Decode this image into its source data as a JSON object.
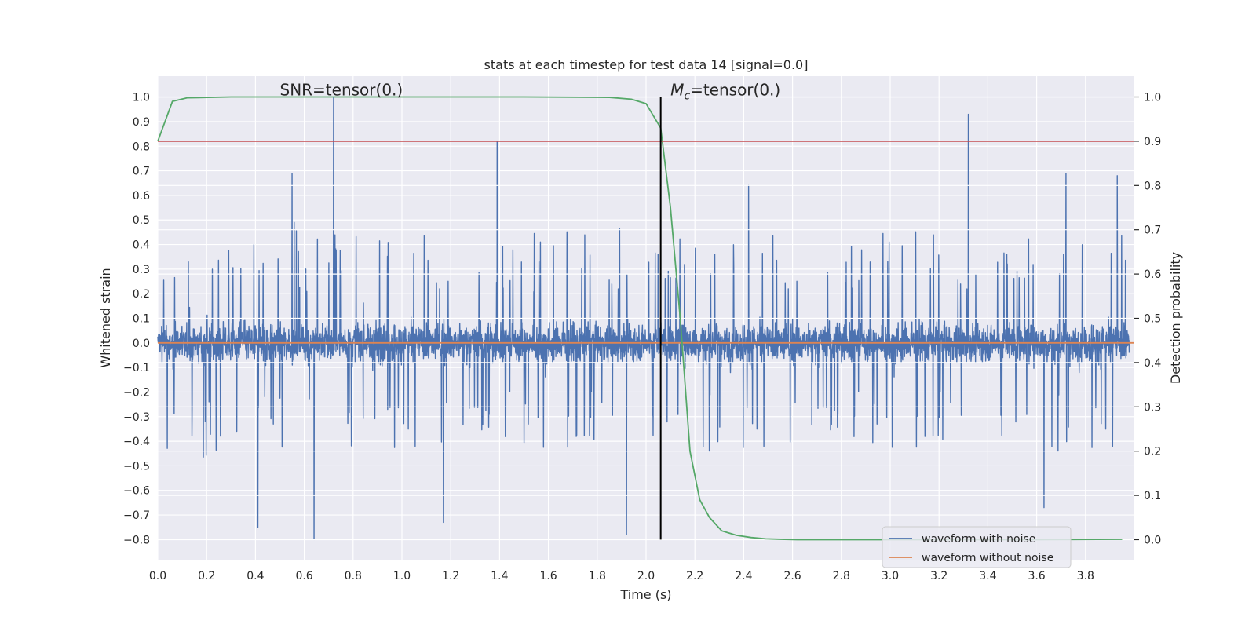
{
  "chart_data": {
    "type": "line",
    "title": "stats at each timestep for test data 14 [signal=0.0]",
    "xlabel": "Time (s)",
    "ylabel": "Whitened strain",
    "y2label": "Detection probability",
    "xlim": [
      0.0,
      4.0
    ],
    "ylim": [
      -0.885,
      1.085
    ],
    "y2lim": [
      -0.047,
      1.047
    ],
    "x_ticks": [
      0.0,
      0.2,
      0.4,
      0.6,
      0.8,
      1.0,
      1.2,
      1.4,
      1.6,
      1.8,
      2.0,
      2.2,
      2.4,
      2.6,
      2.8,
      3.0,
      3.2,
      3.4,
      3.6,
      3.8
    ],
    "x_tick_labels": [
      "0.0",
      "0.2",
      "0.4",
      "0.6",
      "0.8",
      "1.0",
      "1.2",
      "1.4",
      "1.6",
      "1.8",
      "2.0",
      "2.2",
      "2.4",
      "2.6",
      "2.8",
      "3.0",
      "3.2",
      "3.4",
      "3.6",
      "3.8"
    ],
    "y_ticks": [
      1.0,
      0.9,
      0.8,
      0.7,
      0.6,
      0.5,
      0.4,
      0.3,
      0.2,
      0.1,
      0.0,
      -0.1,
      -0.2,
      -0.3,
      -0.4,
      -0.5,
      -0.6,
      -0.7,
      -0.8
    ],
    "y_tick_labels": [
      "1.0",
      "0.9",
      "0.8",
      "0.7",
      "0.6",
      "0.5",
      "0.4",
      "0.3",
      "0.2",
      "0.1",
      "0.0",
      "−0.1",
      "−0.2",
      "−0.3",
      "−0.4",
      "−0.5",
      "−0.6",
      "−0.7",
      "−0.8"
    ],
    "y2_ticks": [
      1.0,
      0.9,
      0.8,
      0.7,
      0.6,
      0.5,
      0.4,
      0.3,
      0.2,
      0.1,
      0.0
    ],
    "y2_tick_labels": [
      "1.0",
      "0.9",
      "0.8",
      "0.7",
      "0.6",
      "0.5",
      "0.4",
      "0.3",
      "0.2",
      "0.1",
      "0.0"
    ],
    "grid": true,
    "background": "#eaeaf2",
    "series": [
      {
        "name": "waveform with noise",
        "axis": "left",
        "color": "#4c72b0",
        "style": "dense noisy trace spanning full time range",
        "peaks": [
          {
            "x": 0.72,
            "y": 1.0
          },
          {
            "x": 1.39,
            "y": 0.82
          },
          {
            "x": 3.32,
            "y": 0.93
          },
          {
            "x": 0.55,
            "y": 0.69
          },
          {
            "x": 3.72,
            "y": 0.69
          },
          {
            "x": 3.93,
            "y": 0.68
          },
          {
            "x": 2.42,
            "y": 0.64
          },
          {
            "x": 0.64,
            "y": -0.8
          },
          {
            "x": 0.41,
            "y": -0.75
          },
          {
            "x": 1.92,
            "y": -0.78
          },
          {
            "x": 1.17,
            "y": -0.73
          },
          {
            "x": 3.63,
            "y": -0.67
          }
        ]
      },
      {
        "name": "waveform without noise",
        "axis": "left",
        "color": "#dd8452",
        "x": [
          0.0,
          4.0
        ],
        "y": [
          0.0,
          0.0
        ]
      },
      {
        "axis": "right",
        "color": "#55a868",
        "x": [
          0.0,
          0.06,
          0.12,
          0.3,
          1.5,
          1.85,
          1.94,
          2.0,
          2.06,
          2.1,
          2.14,
          2.18,
          2.22,
          2.26,
          2.31,
          2.37,
          2.43,
          2.49,
          2.55,
          2.62,
          2.8,
          3.2,
          3.6,
          3.95
        ],
        "y": [
          0.9,
          0.99,
          0.998,
          1.0,
          1.0,
          0.999,
          0.995,
          0.985,
          0.93,
          0.75,
          0.5,
          0.2,
          0.09,
          0.05,
          0.02,
          0.01,
          0.005,
          0.002,
          0.001,
          0.0,
          0.0,
          0.0,
          0.0,
          0.001
        ]
      },
      {
        "axis": "right",
        "color": "#c44e52",
        "x": [
          0.0,
          4.0
        ],
        "y": [
          0.9,
          0.9
        ]
      }
    ],
    "vline": {
      "x": 2.06,
      "color": "#000000",
      "y_from": -0.8,
      "y_to": 1.0
    },
    "annotations": [
      {
        "text": "SNR=tensor(0.)",
        "x": 0.5,
        "y": 1.0
      },
      {
        "text_main": "M",
        "text_sub": "c",
        "text_rest": "=tensor(0.)",
        "x": 2.1,
        "y": 1.0
      }
    ],
    "legend": {
      "position": "lower-right",
      "entries": [
        "waveform with noise",
        "waveform without noise"
      ]
    }
  }
}
